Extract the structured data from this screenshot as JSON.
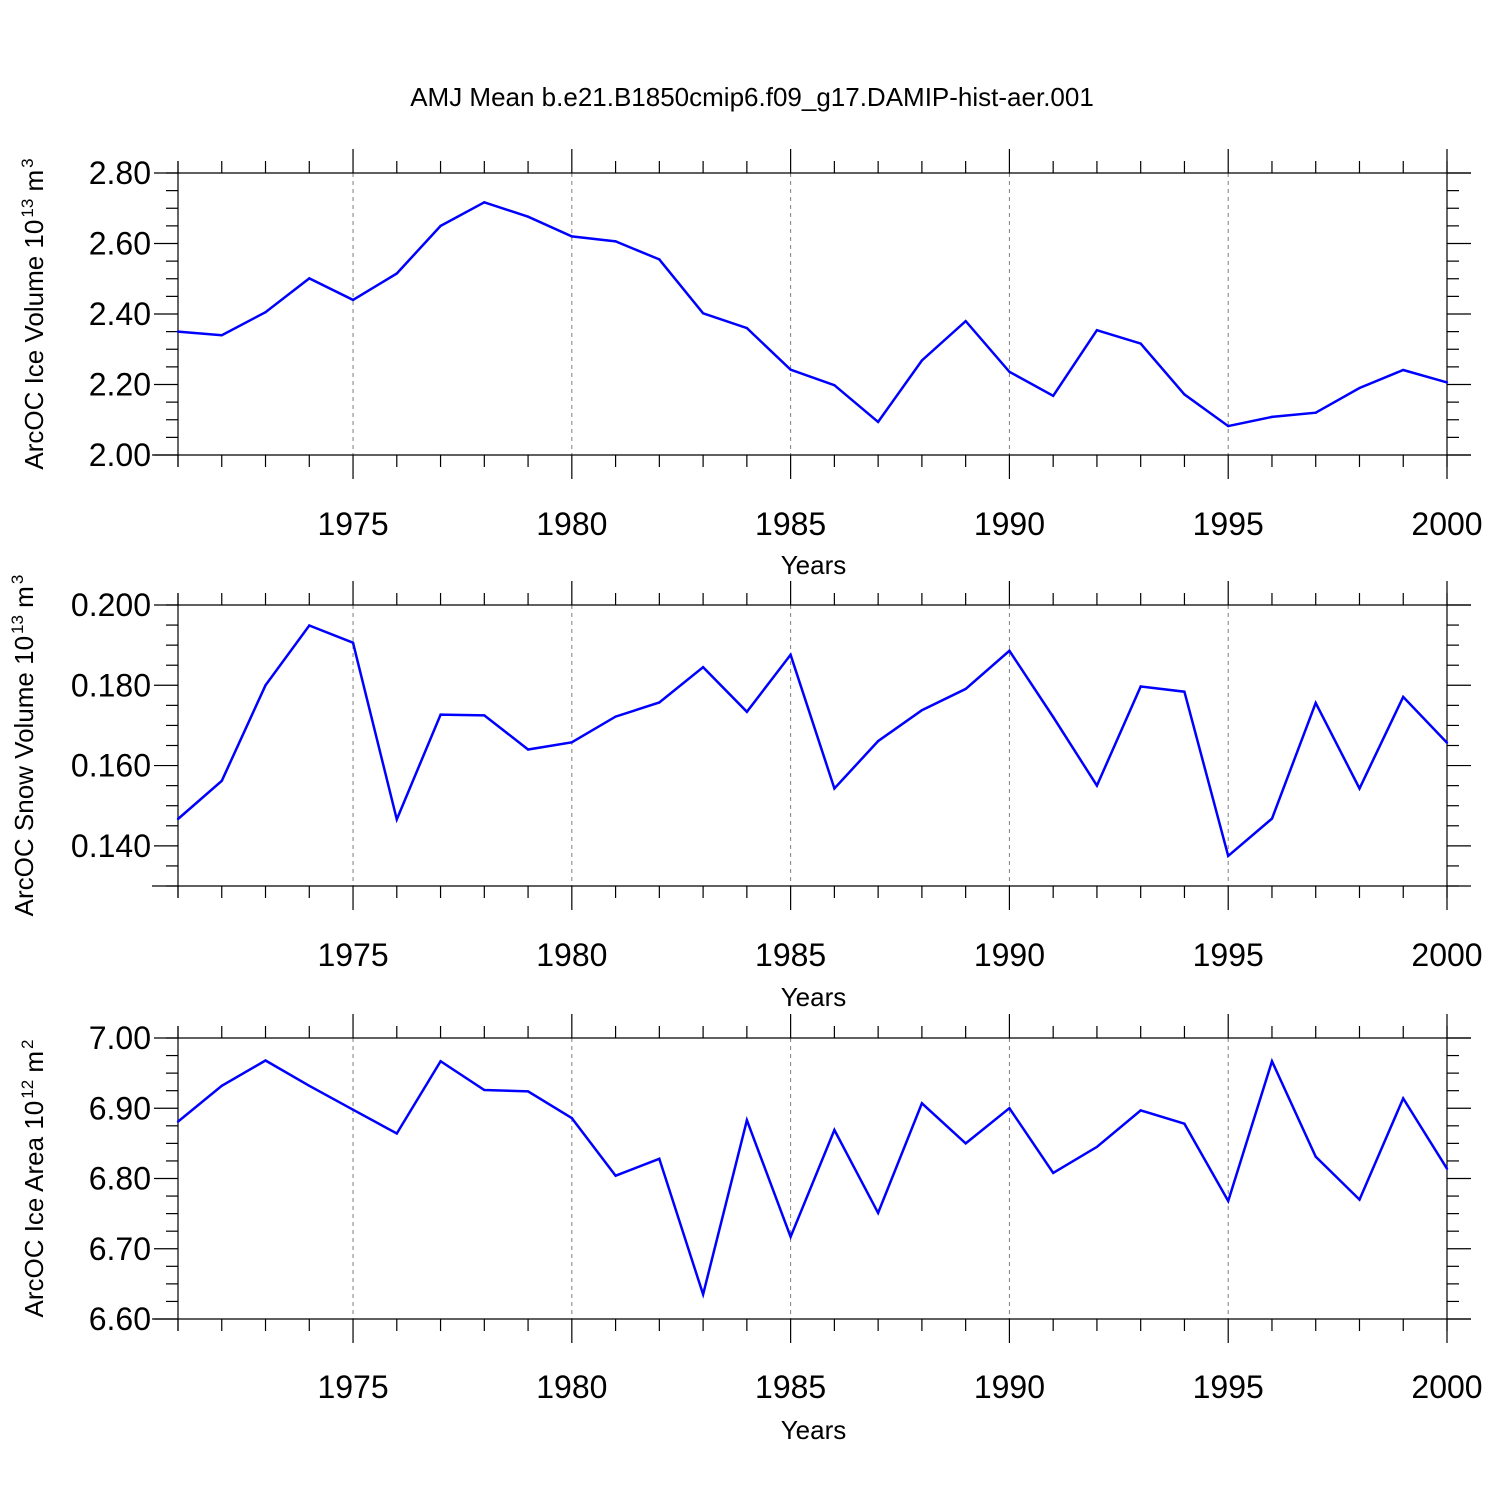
{
  "title": "AMJ Mean b.e21.B1850cmip6.f09_g17.DAMIP-hist-aer.001",
  "colors": {
    "line": "#0000ff",
    "axis": "#000000",
    "grid": "#7f7f7f"
  },
  "chart_data": [
    {
      "type": "line",
      "ylabel": "ArcOC Ice Volume 10",
      "ylabel_exp": "13",
      "ylabel_unit": " m",
      "ylabel_unit_exp": "3",
      "xlabel": "Years",
      "xlim": [
        1971,
        2000
      ],
      "ylim": [
        2.0,
        2.8
      ],
      "yticks": [
        2.0,
        2.2,
        2.4,
        2.6,
        2.8
      ],
      "ytick_labels": [
        "2.00",
        "2.20",
        "2.40",
        "2.60",
        "2.80"
      ],
      "yminor_step": 0.05,
      "xticks": [
        1975,
        1980,
        1985,
        1990,
        1995,
        2000
      ],
      "xtick_labels": [
        "1975",
        "1980",
        "1985",
        "1990",
        "1995",
        "2000"
      ],
      "x": [
        1971,
        1972,
        1973,
        1974,
        1975,
        1976,
        1977,
        1978,
        1979,
        1980,
        1981,
        1982,
        1983,
        1984,
        1985,
        1986,
        1987,
        1988,
        1989,
        1990,
        1991,
        1992,
        1993,
        1994,
        1995,
        1996,
        1997,
        1998,
        1999,
        2000
      ],
      "y": [
        2.35,
        2.34,
        2.405,
        2.501,
        2.44,
        2.515,
        2.65,
        2.717,
        2.676,
        2.62,
        2.606,
        2.555,
        2.402,
        2.36,
        2.242,
        2.198,
        2.094,
        2.268,
        2.38,
        2.236,
        2.168,
        2.354,
        2.316,
        2.172,
        2.082,
        2.108,
        2.12,
        2.19,
        2.241,
        2.206
      ]
    },
    {
      "type": "line",
      "ylabel": "ArcOC Snow Volume 10",
      "ylabel_exp": "13",
      "ylabel_unit": " m",
      "ylabel_unit_exp": "3",
      "xlabel": "Years",
      "xlim": [
        1971,
        2000
      ],
      "ylim": [
        0.13,
        0.2
      ],
      "yticks": [
        0.14,
        0.16,
        0.18,
        0.2
      ],
      "ytick_labels": [
        "0.140",
        "0.160",
        "0.180",
        "0.200"
      ],
      "yminor_step": 0.005,
      "xticks": [
        1975,
        1980,
        1985,
        1990,
        1995,
        2000
      ],
      "xtick_labels": [
        "1975",
        "1980",
        "1985",
        "1990",
        "1995",
        "2000"
      ],
      "x": [
        1971,
        1972,
        1973,
        1974,
        1975,
        1976,
        1977,
        1978,
        1979,
        1980,
        1981,
        1982,
        1983,
        1984,
        1985,
        1986,
        1987,
        1988,
        1989,
        1990,
        1991,
        1992,
        1993,
        1994,
        1995,
        1996,
        1997,
        1998,
        1999,
        2000
      ],
      "y": [
        0.1467,
        0.1562,
        0.18,
        0.1949,
        0.1906,
        0.1466,
        0.1727,
        0.1725,
        0.164,
        0.1658,
        0.1722,
        0.1757,
        0.1845,
        0.1734,
        0.1876,
        0.1543,
        0.1661,
        0.1738,
        0.1791,
        0.1886,
        0.1721,
        0.155,
        0.1797,
        0.1784,
        0.1375,
        0.1468,
        0.1756,
        0.1543,
        0.1771,
        0.1657
      ]
    },
    {
      "type": "line",
      "ylabel": "ArcOC Ice Area 10",
      "ylabel_exp": "12",
      "ylabel_unit": " m",
      "ylabel_unit_exp": "2",
      "xlabel": "Years",
      "xlim": [
        1971,
        2000
      ],
      "ylim": [
        6.6,
        7.0
      ],
      "yticks": [
        6.6,
        6.7,
        6.8,
        6.9,
        7.0
      ],
      "ytick_labels": [
        "6.60",
        "6.70",
        "6.80",
        "6.90",
        "7.00"
      ],
      "yminor_step": 0.025,
      "xticks": [
        1975,
        1980,
        1985,
        1990,
        1995,
        2000
      ],
      "xtick_labels": [
        "1975",
        "1980",
        "1985",
        "1990",
        "1995",
        "2000"
      ],
      "x": [
        1971,
        1972,
        1973,
        1974,
        1975,
        1976,
        1977,
        1978,
        1979,
        1980,
        1981,
        1982,
        1983,
        1984,
        1985,
        1986,
        1987,
        1988,
        1989,
        1990,
        1991,
        1992,
        1993,
        1994,
        1995,
        1996,
        1997,
        1998,
        1999,
        2000
      ],
      "y": [
        6.881,
        6.932,
        6.968,
        6.932,
        6.898,
        6.864,
        6.967,
        6.926,
        6.924,
        6.886,
        6.804,
        6.828,
        6.635,
        6.883,
        6.717,
        6.869,
        6.751,
        6.907,
        6.85,
        6.9,
        6.808,
        6.845,
        6.897,
        6.878,
        6.768,
        6.967,
        6.831,
        6.77,
        6.914,
        6.814
      ]
    }
  ]
}
